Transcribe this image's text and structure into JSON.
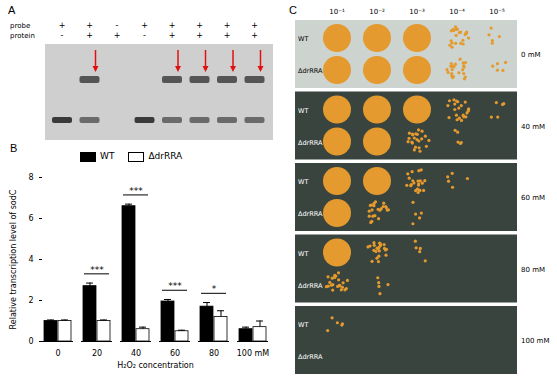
{
  "chart_data": {
    "type": "bar",
    "x_label": "H₂O₂ concentration",
    "y_label": "Relative transcription level of sodC",
    "categories": [
      "0",
      "20",
      "40",
      "60",
      "80",
      "100 mM"
    ],
    "series": [
      {
        "name": "WT",
        "color": "#000000",
        "values": [
          1.0,
          2.7,
          6.6,
          1.95,
          1.7,
          0.6
        ],
        "errors": [
          0.05,
          0.15,
          0.1,
          0.1,
          0.2,
          0.1
        ]
      },
      {
        "name": "ΔdrRRA",
        "color": "#ffffff",
        "values": [
          1.0,
          1.0,
          0.6,
          0.5,
          1.2,
          0.7
        ],
        "errors": [
          0.05,
          0.05,
          0.1,
          0.05,
          0.3,
          0.3
        ]
      }
    ],
    "annotations": [
      {
        "category": "20",
        "text": "***"
      },
      {
        "category": "40",
        "text": "***"
      },
      {
        "category": "60",
        "text": "***"
      },
      {
        "category": "80",
        "text": "*"
      }
    ],
    "ylim": [
      0,
      8
    ],
    "yticks": [
      0,
      2,
      4,
      6,
      8
    ],
    "legend": "top"
  },
  "panels": {
    "A": {
      "label": "A",
      "rows": [
        {
          "name": "probe",
          "lanes": [
            "+",
            "+",
            "-",
            "+",
            "+",
            "+",
            "+",
            "+"
          ]
        },
        {
          "name": "protein",
          "lanes": [
            "-",
            "+",
            "+",
            "-",
            "+",
            "+",
            "+",
            "+"
          ]
        }
      ]
    },
    "B": {
      "label": "B"
    },
    "C": {
      "label": "C",
      "column_labels": [
        "10⁻¹",
        "10⁻²",
        "10⁻³",
        "10⁻⁴",
        "10⁻⁵"
      ],
      "strains": [
        "WT",
        "ΔdrRRA"
      ],
      "plates": [
        "0 mM",
        "40 mM",
        "60 mM",
        "80 mM",
        "100 mM"
      ]
    }
  }
}
